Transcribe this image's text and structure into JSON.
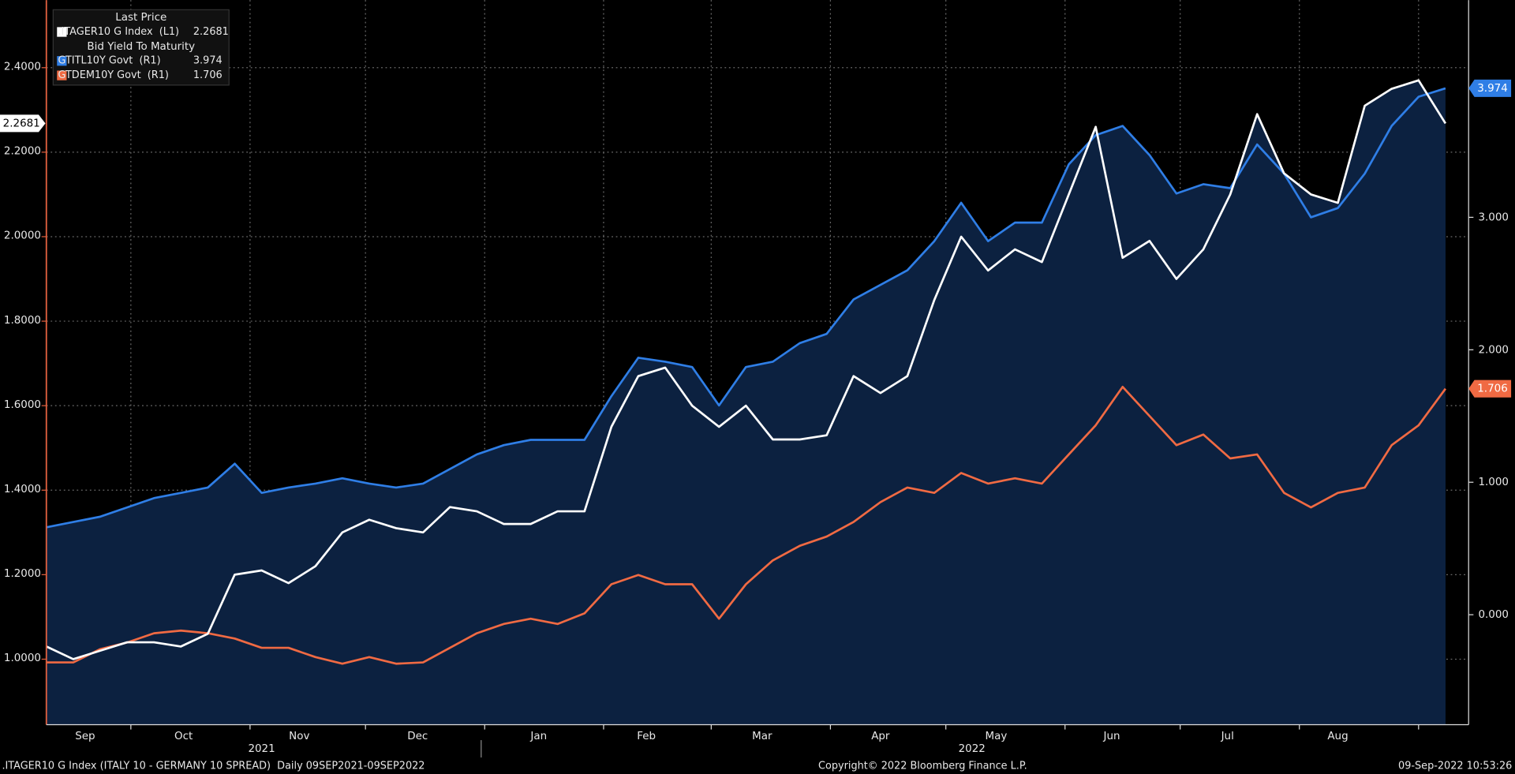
{
  "chart_data": {
    "type": "line",
    "legend_headers": [
      "Last Price",
      "Bid Yield To Maturity"
    ],
    "xlim": [
      0,
      52.86
    ],
    "xticks": [
      {
        "value": 1.44,
        "label": "Sep"
      },
      {
        "value": 5.1,
        "label": "Oct"
      },
      {
        "value": 9.4,
        "label": "Nov"
      },
      {
        "value": 13.8,
        "label": "Dec"
      },
      {
        "value": 18.3,
        "label": "Jan"
      },
      {
        "value": 22.3,
        "label": "Feb"
      },
      {
        "value": 26.6,
        "label": "Mar"
      },
      {
        "value": 31.0,
        "label": "Apr"
      },
      {
        "value": 35.3,
        "label": "May"
      },
      {
        "value": 39.6,
        "label": "Jun"
      },
      {
        "value": 43.9,
        "label": "Jul"
      },
      {
        "value": 48.0,
        "label": "Aug"
      }
    ],
    "xgrid": [
      3.14,
      7.57,
      11.86,
      16.29,
      20.71,
      24.71,
      29.14,
      33.43,
      37.86,
      42.14,
      46.57,
      51.0
    ],
    "year_labels": [
      {
        "value": 8.0,
        "label": "2021"
      },
      {
        "value": 34.4,
        "label": "2022"
      }
    ],
    "ylim": [
      0.845,
      2.56
    ],
    "yticks": [
      {
        "value": 1.0,
        "label": "1.0000"
      },
      {
        "value": 1.2,
        "label": "1.2000"
      },
      {
        "value": 1.4,
        "label": "1.4000"
      },
      {
        "value": 1.6,
        "label": "1.6000"
      },
      {
        "value": 1.8,
        "label": "1.8000"
      },
      {
        "value": 2.0,
        "label": "2.0000"
      },
      {
        "value": 2.2,
        "label": "2.2000"
      },
      {
        "value": 2.4,
        "label": "2.4000"
      }
    ],
    "y2lim": [
      -0.83,
      4.64
    ],
    "y2ticks": [
      {
        "value": 0,
        "label": "0.000"
      },
      {
        "value": 1,
        "label": "1.000"
      },
      {
        "value": 2,
        "label": "2.000"
      },
      {
        "value": 3,
        "label": "3.000"
      }
    ],
    "grid": true,
    "area_color": "#0c2140",
    "series": [
      {
        "name": ".ITAGER10 G Index  (L1)",
        "color": "#ffffff",
        "axis": "y",
        "legend_group": 0,
        "values": [
          1.03,
          1.0,
          1.02,
          1.04,
          1.04,
          1.03,
          1.06,
          1.2,
          1.21,
          1.18,
          1.22,
          1.3,
          1.33,
          1.31,
          1.3,
          1.36,
          1.35,
          1.32,
          1.32,
          1.35,
          1.35,
          1.55,
          1.67,
          1.69,
          1.6,
          1.55,
          1.6,
          1.52,
          1.52,
          1.53,
          1.67,
          1.63,
          1.67,
          1.85,
          2.0,
          1.92,
          1.97,
          1.94,
          2.1,
          2.26,
          1.95,
          1.99,
          1.9,
          1.97,
          2.1,
          2.29,
          2.15,
          2.1,
          2.08,
          2.31,
          2.35,
          2.37,
          2.2681
        ]
      },
      {
        "name": "GTITL10Y Govt  (R1)",
        "color": "#2f7ee6",
        "axis": "y2",
        "legend_group": 1,
        "values": [
          0.66,
          0.7,
          0.74,
          0.81,
          0.88,
          0.92,
          0.96,
          1.14,
          0.92,
          0.96,
          0.99,
          1.03,
          0.99,
          0.96,
          0.99,
          1.1,
          1.21,
          1.28,
          1.32,
          1.32,
          1.32,
          1.65,
          1.94,
          1.91,
          1.87,
          1.58,
          1.87,
          1.91,
          2.05,
          2.12,
          2.38,
          2.49,
          2.6,
          2.82,
          3.11,
          2.82,
          2.96,
          2.96,
          3.4,
          3.62,
          3.69,
          3.47,
          3.18,
          3.25,
          3.22,
          3.55,
          3.33,
          3.0,
          3.07,
          3.33,
          3.69,
          3.91,
          3.974
        ]
      },
      {
        "name": "GTDEM10Y Govt  (R1)",
        "color": "#f06a43",
        "axis": "y2",
        "legend_group": 1,
        "values": [
          -0.36,
          -0.36,
          -0.26,
          -0.21,
          -0.14,
          -0.12,
          -0.14,
          -0.18,
          -0.25,
          -0.25,
          -0.32,
          -0.37,
          -0.32,
          -0.37,
          -0.36,
          -0.25,
          -0.14,
          -0.07,
          -0.03,
          -0.07,
          0.01,
          0.23,
          0.3,
          0.23,
          0.23,
          -0.03,
          0.23,
          0.41,
          0.52,
          0.59,
          0.7,
          0.85,
          0.96,
          0.92,
          1.07,
          0.99,
          1.03,
          0.99,
          1.21,
          1.43,
          1.72,
          1.5,
          1.28,
          1.36,
          1.18,
          1.21,
          0.92,
          0.81,
          0.92,
          0.96,
          1.28,
          1.43,
          1.706
        ]
      }
    ],
    "footer": {
      "left": ".ITAGER10 G Index (ITALY 10 - GERMANY 10 SPREAD)  Daily 09SEP2021-09SEP2022",
      "center": "Copyright© 2022 Bloomberg Finance L.P.",
      "right": "09-Sep-2022 10:53:26"
    }
  }
}
